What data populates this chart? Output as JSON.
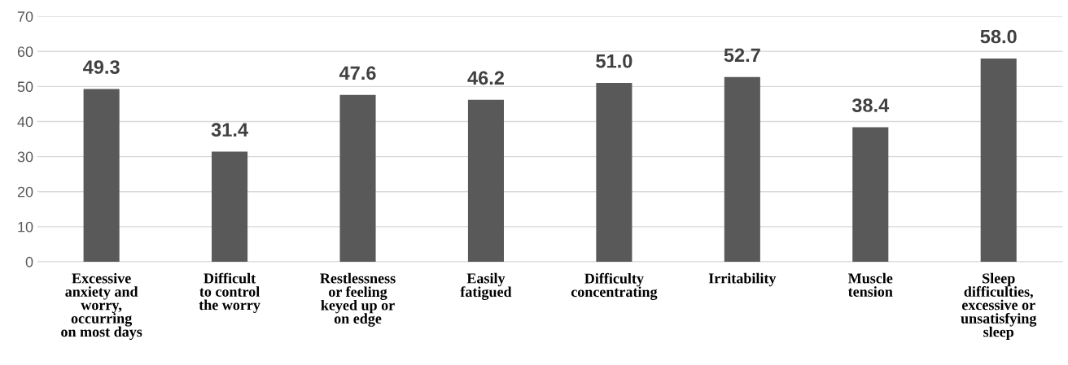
{
  "chart_data": {
    "type": "bar",
    "categories": [
      "Excessive\nanxiety and\nworry,\noccurring\non most days",
      "Difficult\nto control\nthe worry",
      "Restlessness\nor feeling\nkeyed up or\non edge",
      "Easily\nfatigued",
      "Difficulty\nconcentrating",
      "Irritability",
      "Muscle\ntension",
      "Sleep\ndifficulties,\nexcessive or\nunsatisfying\nsleep"
    ],
    "values": [
      49.3,
      31.4,
      47.6,
      46.2,
      51.0,
      52.7,
      38.4,
      58.0
    ],
    "color": "#595959",
    "ylim": [
      0,
      70
    ],
    "yticks": [
      0,
      10,
      20,
      30,
      40,
      50,
      60,
      70
    ],
    "value_labels": [
      "49.3",
      "31.4",
      "47.6",
      "46.2",
      "51.0",
      "52.7",
      "38.4",
      "58.0"
    ],
    "grid": "y"
  }
}
